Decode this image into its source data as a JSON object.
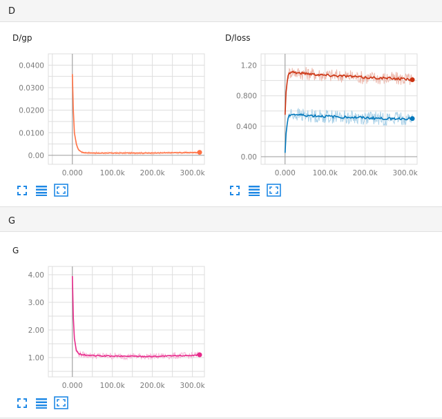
{
  "sections": [
    {
      "title": "D"
    },
    {
      "title": "G"
    }
  ],
  "toolbar": {
    "expand_icon": "fullscreen-icon",
    "data_icon": "list-icon",
    "fit_icon": "fit-domain-icon"
  },
  "colors": {
    "orange": "#ff7043",
    "red": "#cc3311",
    "red_light": "#f2b5a7",
    "blue": "#0077bb",
    "blue_light": "#aadcf5",
    "pink": "#e7298a",
    "pink_light": "#f7bcd7",
    "grid": "#dddddd",
    "axis": "#999999"
  },
  "chart_data": [
    {
      "id": "dgp",
      "type": "line",
      "title": "D/gp",
      "xlabel": "",
      "ylabel": "",
      "xlim": [
        -60000,
        330000
      ],
      "ylim": [
        -0.004,
        0.045
      ],
      "xticks": [
        0,
        100000,
        200000,
        300000
      ],
      "xtick_labels": [
        "0.000",
        "100.0k",
        "200.0k",
        "300.0k"
      ],
      "yticks": [
        0,
        0.01,
        0.02,
        0.03,
        0.04
      ],
      "ytick_labels": [
        "0.00",
        "0.0100",
        "0.0200",
        "0.0300",
        "0.0400"
      ],
      "grid": true,
      "series": [
        {
          "color": "#ff7043",
          "smoothed": {
            "x": [
              0,
              2000,
              5000,
              10000,
              15000,
              25000,
              50000,
              100000,
              150000,
              200000,
              250000,
              300000,
              318000
            ],
            "y": [
              0.036,
              0.022,
              0.01,
              0.005,
              0.0025,
              0.0012,
              0.001,
              0.001,
              0.001,
              0.001,
              0.0011,
              0.0012,
              0.0013
            ]
          }
        }
      ]
    },
    {
      "id": "dloss",
      "type": "line",
      "title": "D/loss",
      "xlabel": "",
      "ylabel": "",
      "xlim": [
        -60000,
        330000
      ],
      "ylim": [
        -0.1,
        1.35
      ],
      "xticks": [
        0,
        100000,
        200000,
        300000
      ],
      "xtick_labels": [
        "0.000",
        "100.0k",
        "200.0k",
        "300.0k"
      ],
      "yticks": [
        0,
        0.4,
        0.8,
        1.2
      ],
      "ytick_labels": [
        "0.00",
        "0.400",
        "0.800",
        "1.20"
      ],
      "grid": true,
      "series": [
        {
          "color": "#cc3311",
          "smoothed": {
            "x": [
              0,
              3000,
              8000,
              15000,
              30000,
              60000,
              100000,
              150000,
              200000,
              250000,
              300000,
              318000
            ],
            "y": [
              0.55,
              0.9,
              1.08,
              1.12,
              1.1,
              1.09,
              1.07,
              1.06,
              1.04,
              1.03,
              1.02,
              1.01
            ]
          }
        },
        {
          "color": "#0077bb",
          "smoothed": {
            "x": [
              0,
              3000,
              8000,
              15000,
              30000,
              60000,
              100000,
              150000,
              200000,
              250000,
              300000,
              318000
            ],
            "y": [
              0.05,
              0.35,
              0.52,
              0.56,
              0.55,
              0.54,
              0.53,
              0.52,
              0.51,
              0.5,
              0.5,
              0.5
            ]
          }
        }
      ]
    },
    {
      "id": "g",
      "type": "line",
      "title": "G",
      "xlabel": "",
      "ylabel": "",
      "xlim": [
        -60000,
        330000
      ],
      "ylim": [
        0.3,
        4.3
      ],
      "xticks": [
        0,
        100000,
        200000,
        300000
      ],
      "xtick_labels": [
        "0.000",
        "100.0k",
        "200.0k",
        "300.0k"
      ],
      "yticks": [
        1,
        2,
        3,
        4
      ],
      "ytick_labels": [
        "1.00",
        "2.00",
        "3.00",
        "4.00"
      ],
      "grid": true,
      "series": [
        {
          "color": "#e7298a",
          "smoothed": {
            "x": [
              0,
              2000,
              5000,
              10000,
              15000,
              25000,
              50000,
              100000,
              150000,
              200000,
              250000,
              300000,
              318000
            ],
            "y": [
              3.95,
              2.6,
              1.7,
              1.25,
              1.15,
              1.1,
              1.07,
              1.05,
              1.05,
              1.04,
              1.06,
              1.08,
              1.1
            ]
          }
        }
      ]
    }
  ]
}
